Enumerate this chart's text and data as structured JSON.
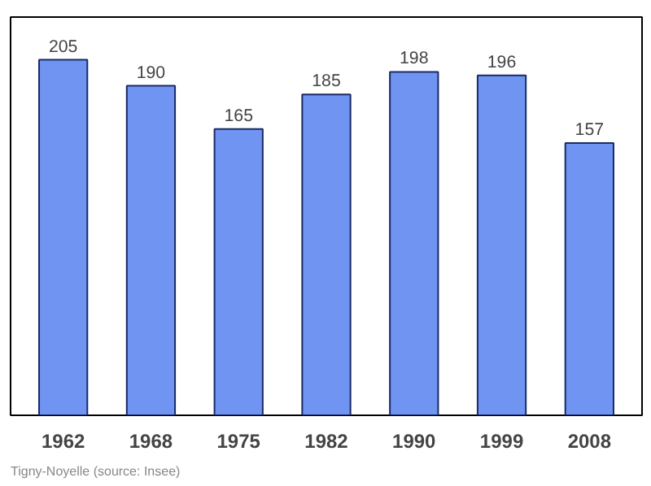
{
  "chart_data": {
    "type": "bar",
    "categories": [
      "1962",
      "1968",
      "1975",
      "1982",
      "1990",
      "1999",
      "2008"
    ],
    "values": [
      205,
      190,
      165,
      185,
      198,
      196,
      157
    ],
    "color": "#6f94f2",
    "data_labels": true,
    "grid": false,
    "tick_labels": "x",
    "annotations": [
      "Tigny-Noyelle (source: Insee)"
    ]
  }
}
